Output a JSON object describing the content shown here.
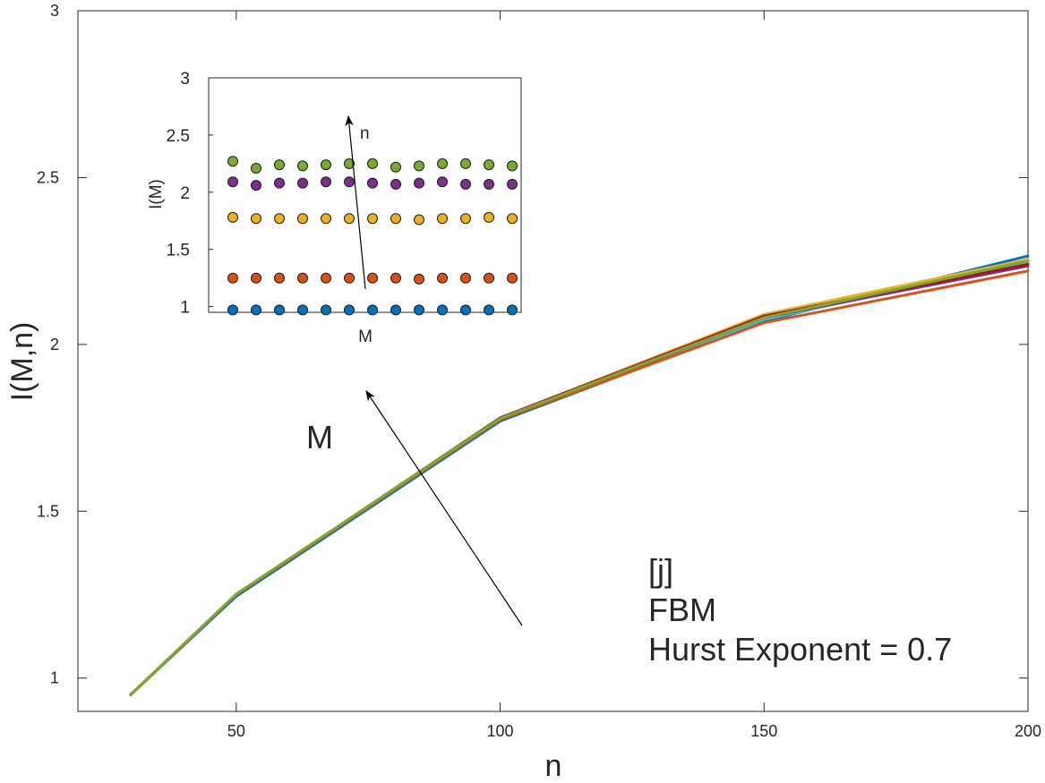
{
  "chart_data": [
    {
      "type": "line",
      "title": "",
      "xlabel": "n",
      "ylabel": "I(M,n)",
      "xlim": [
        20,
        200
      ],
      "ylim": [
        0.9,
        3
      ],
      "x_ticks": [
        "50",
        "100",
        "150",
        "200"
      ],
      "y_ticks": [
        "1",
        "1.5",
        "2",
        "2.5",
        "3"
      ],
      "x": [
        30,
        50,
        100,
        150,
        200
      ],
      "series": [
        {
          "color": "#0072BD",
          "values": [
            0.95,
            1.245,
            1.77,
            2.07,
            2.265
          ]
        },
        {
          "color": "#4DBEEE",
          "values": [
            0.95,
            1.25,
            1.775,
            2.075,
            2.245
          ]
        },
        {
          "color": "#7E2F8E",
          "values": [
            0.95,
            1.25,
            1.775,
            2.08,
            2.235
          ]
        },
        {
          "color": "#EDB120",
          "values": [
            0.95,
            1.25,
            1.78,
            2.09,
            2.255
          ]
        },
        {
          "color": "#A2142F",
          "values": [
            0.95,
            1.25,
            1.78,
            2.085,
            2.24
          ]
        },
        {
          "color": "#D95319",
          "values": [
            0.95,
            1.25,
            1.775,
            2.065,
            2.22
          ]
        },
        {
          "color": "#77AC30",
          "values": [
            0.95,
            1.252,
            1.778,
            2.08,
            2.25
          ]
        }
      ],
      "grid": false,
      "annotations": {
        "arrow_label": "M",
        "text_lines": [
          "[j]",
          "FBM",
          "Hurst Exponent = 0.7"
        ]
      }
    },
    {
      "type": "scatter",
      "title": "",
      "xlabel": "M",
      "ylabel": "I(M)",
      "ylim": [
        0.95,
        3
      ],
      "y_ticks": [
        "1",
        "1.5",
        "2",
        "2.5",
        "3"
      ],
      "x": [
        1,
        2,
        3,
        4,
        5,
        6,
        7,
        8,
        9,
        10,
        11,
        12,
        13
      ],
      "series": [
        {
          "color": "#0072BD",
          "values": [
            0.97,
            0.97,
            0.97,
            0.97,
            0.97,
            0.97,
            0.97,
            0.97,
            0.97,
            0.97,
            0.97,
            0.97,
            0.97
          ]
        },
        {
          "color": "#D95319",
          "values": [
            1.25,
            1.25,
            1.25,
            1.25,
            1.25,
            1.25,
            1.25,
            1.25,
            1.24,
            1.25,
            1.25,
            1.25,
            1.25
          ]
        },
        {
          "color": "#EDB120",
          "values": [
            1.78,
            1.77,
            1.77,
            1.77,
            1.77,
            1.77,
            1.77,
            1.77,
            1.76,
            1.77,
            1.77,
            1.78,
            1.77
          ]
        },
        {
          "color": "#7E2F8E",
          "values": [
            2.09,
            2.06,
            2.08,
            2.08,
            2.09,
            2.09,
            2.08,
            2.07,
            2.08,
            2.09,
            2.07,
            2.07,
            2.07
          ]
        },
        {
          "color": "#77AC30",
          "values": [
            2.27,
            2.21,
            2.24,
            2.23,
            2.24,
            2.25,
            2.25,
            2.22,
            2.23,
            2.25,
            2.25,
            2.24,
            2.23
          ]
        }
      ],
      "grid": false,
      "annotations": {
        "arrow_label": "n"
      }
    }
  ]
}
